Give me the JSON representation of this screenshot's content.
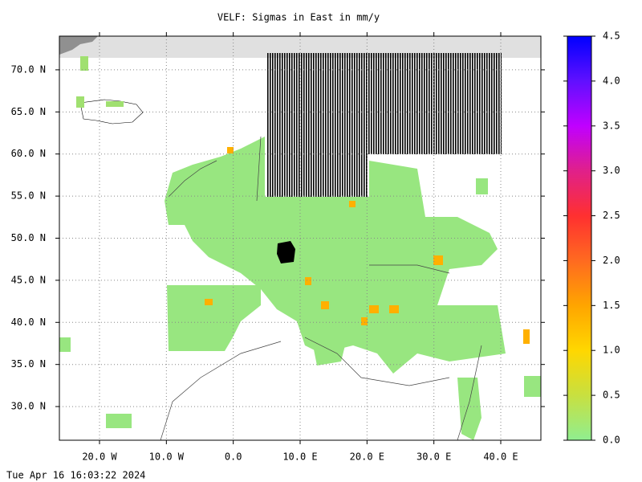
{
  "chart_data": {
    "type": "map",
    "title": "VELF: Sigmas in East in mm/y",
    "xlim": [
      -26,
      46
    ],
    "xticks": [
      {
        "value": -20,
        "label": "20.0 W"
      },
      {
        "value": -10,
        "label": "10.0 W"
      },
      {
        "value": 0,
        "label": "0.0"
      },
      {
        "value": 10,
        "label": "10.0 E"
      },
      {
        "value": 20,
        "label": "20.0 E"
      },
      {
        "value": 30,
        "label": "30.0 E"
      },
      {
        "value": 40,
        "label": "40.0 E"
      }
    ],
    "ylim": [
      26,
      74
    ],
    "yticks": [
      {
        "value": 30,
        "label": "30.0 N"
      },
      {
        "value": 35,
        "label": "35.0 N"
      },
      {
        "value": 40,
        "label": "40.0 N"
      },
      {
        "value": 45,
        "label": "45.0 N"
      },
      {
        "value": 50,
        "label": "50.0 N"
      },
      {
        "value": 55,
        "label": "55.0 N"
      },
      {
        "value": 60,
        "label": "60.0 N"
      },
      {
        "value": 65,
        "label": "65.0 N"
      },
      {
        "value": 70,
        "label": "70.0 N"
      }
    ],
    "grid": true,
    "clim": [
      0,
      4.5
    ],
    "cticks": [
      {
        "value": 0,
        "label": "0.0"
      },
      0.5,
      {
        "value": 1,
        "label": "1.0"
      },
      1.5,
      {
        "value": 2,
        "label": "2.0"
      },
      2.5,
      {
        "value": 3,
        "label": "3.0"
      },
      3.5,
      {
        "value": 4,
        "label": "4.0"
      },
      4.5
    ],
    "colormap": [
      "#90ee90",
      "#c8e040",
      "#ffd700",
      "#ffa500",
      "#ff6a20",
      "#ff3030",
      "#e0208a",
      "#c000ff",
      "#6010ff",
      "#0000ff"
    ],
    "timestamp": "Tue Apr 16 16:03:22 2024"
  }
}
